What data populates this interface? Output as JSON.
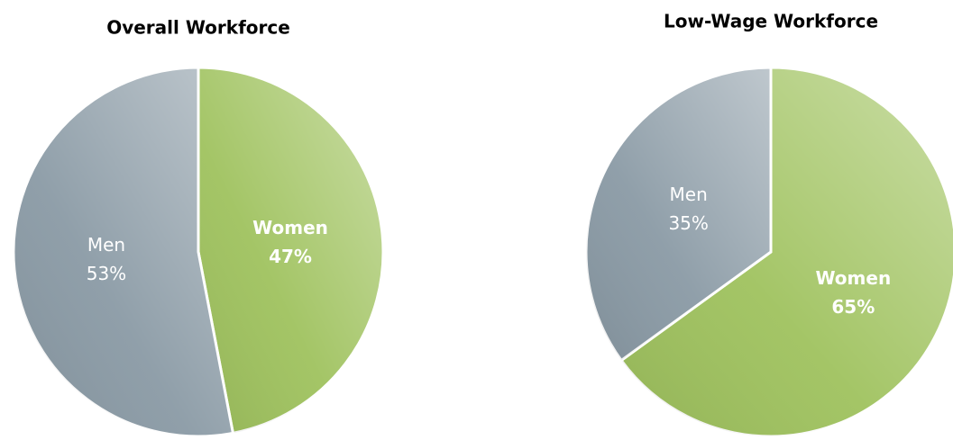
{
  "chart_data": [
    {
      "type": "pie",
      "title": "Overall Workforce",
      "categories": [
        "Women",
        "Men"
      ],
      "values": [
        47,
        53
      ],
      "value_labels": [
        "47%",
        "53%"
      ],
      "colors": [
        "#9fc25e",
        "#8a9aa5"
      ]
    },
    {
      "type": "pie",
      "title": "Low-Wage Workforce",
      "categories": [
        "Women",
        "Men"
      ],
      "values": [
        65,
        35
      ],
      "value_labels": [
        "65%",
        "35%"
      ],
      "colors": [
        "#9fc25e",
        "#8a9aa5"
      ]
    }
  ]
}
